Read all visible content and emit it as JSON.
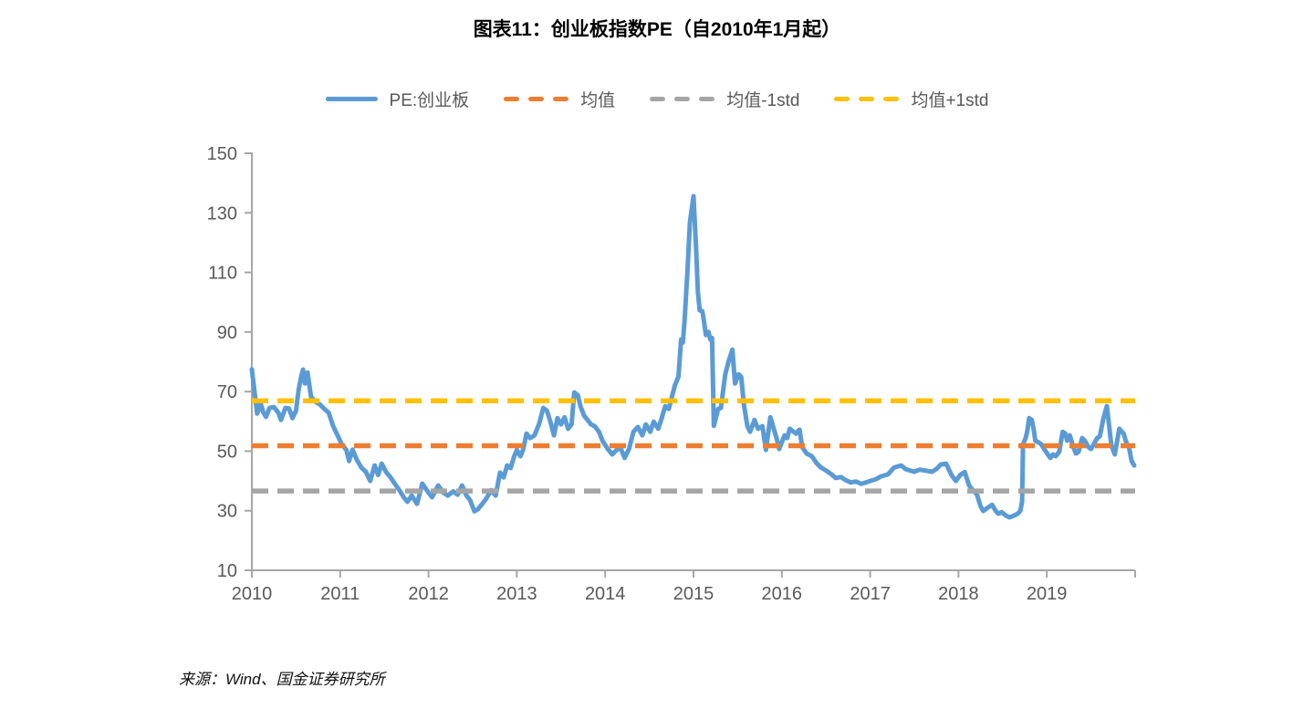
{
  "chart_data": {
    "type": "line",
    "title": "图表11：创业板指数PE（自2010年1月起）",
    "source_note": "来源：Wind、国金证券研究所",
    "legend_position": "top",
    "grid": false,
    "x_axis": {
      "range": [
        2010,
        2020
      ],
      "ticks": [
        2010,
        2011,
        2012,
        2013,
        2014,
        2015,
        2016,
        2017,
        2018,
        2019
      ],
      "end_tick": 2020
    },
    "y_axis": {
      "range": [
        10,
        150
      ],
      "ticks": [
        10,
        30,
        50,
        70,
        90,
        110,
        130,
        150
      ]
    },
    "series": [
      {
        "name": "PE:创业板",
        "color": "#5B9BD5",
        "style": "solid",
        "points": [
          [
            2010.0,
            77.5
          ],
          [
            2010.03,
            70.0
          ],
          [
            2010.06,
            62.6
          ],
          [
            2010.1,
            66.0
          ],
          [
            2010.13,
            63.0
          ],
          [
            2010.16,
            61.5
          ],
          [
            2010.2,
            64.5
          ],
          [
            2010.25,
            64.8
          ],
          [
            2010.3,
            62.9
          ],
          [
            2010.33,
            60.5
          ],
          [
            2010.38,
            64.5
          ],
          [
            2010.42,
            64.3
          ],
          [
            2010.46,
            61.1
          ],
          [
            2010.5,
            63.6
          ],
          [
            2010.53,
            70.7
          ],
          [
            2010.56,
            75.3
          ],
          [
            2010.58,
            77.4
          ],
          [
            2010.6,
            72.7
          ],
          [
            2010.63,
            76.4
          ],
          [
            2010.67,
            68.2
          ],
          [
            2010.72,
            66.6
          ],
          [
            2010.77,
            65.7
          ],
          [
            2010.82,
            64.2
          ],
          [
            2010.87,
            62.9
          ],
          [
            2010.92,
            58.4
          ],
          [
            2010.97,
            55.3
          ],
          [
            2011.02,
            52.2
          ],
          [
            2011.07,
            50.4
          ],
          [
            2011.1,
            46.7
          ],
          [
            2011.14,
            50.5
          ],
          [
            2011.19,
            47.0
          ],
          [
            2011.24,
            44.5
          ],
          [
            2011.29,
            43.1
          ],
          [
            2011.34,
            40.0
          ],
          [
            2011.39,
            45.2
          ],
          [
            2011.43,
            42.0
          ],
          [
            2011.47,
            45.8
          ],
          [
            2011.52,
            43.0
          ],
          [
            2011.57,
            41.2
          ],
          [
            2011.62,
            39.0
          ],
          [
            2011.67,
            36.9
          ],
          [
            2011.72,
            34.5
          ],
          [
            2011.76,
            33.0
          ],
          [
            2011.81,
            35.1
          ],
          [
            2011.87,
            32.3
          ],
          [
            2011.93,
            39.1
          ],
          [
            2011.98,
            36.9
          ],
          [
            2012.04,
            34.5
          ],
          [
            2012.11,
            38.5
          ],
          [
            2012.17,
            36.0
          ],
          [
            2012.22,
            35.1
          ],
          [
            2012.28,
            36.5
          ],
          [
            2012.33,
            35.4
          ],
          [
            2012.38,
            38.5
          ],
          [
            2012.43,
            35.1
          ],
          [
            2012.47,
            33.6
          ],
          [
            2012.52,
            29.8
          ],
          [
            2012.56,
            30.5
          ],
          [
            2012.6,
            32.0
          ],
          [
            2012.65,
            33.9
          ],
          [
            2012.71,
            36.9
          ],
          [
            2012.76,
            35.1
          ],
          [
            2012.81,
            42.8
          ],
          [
            2012.85,
            41.2
          ],
          [
            2012.89,
            45.2
          ],
          [
            2012.93,
            44.3
          ],
          [
            2012.97,
            48.3
          ],
          [
            2013.0,
            50.4
          ],
          [
            2013.04,
            48.3
          ],
          [
            2013.07,
            50.4
          ],
          [
            2013.11,
            55.9
          ],
          [
            2013.15,
            54.4
          ],
          [
            2013.2,
            55.3
          ],
          [
            2013.25,
            59.0
          ],
          [
            2013.3,
            64.5
          ],
          [
            2013.34,
            63.6
          ],
          [
            2013.38,
            59.9
          ],
          [
            2013.42,
            55.3
          ],
          [
            2013.46,
            61.1
          ],
          [
            2013.5,
            59.0
          ],
          [
            2013.54,
            61.4
          ],
          [
            2013.58,
            57.5
          ],
          [
            2013.62,
            59.0
          ],
          [
            2013.65,
            69.7
          ],
          [
            2013.69,
            68.8
          ],
          [
            2013.72,
            65.1
          ],
          [
            2013.76,
            62.0
          ],
          [
            2013.8,
            60.5
          ],
          [
            2013.84,
            59.0
          ],
          [
            2013.88,
            58.4
          ],
          [
            2013.93,
            56.5
          ],
          [
            2013.97,
            53.5
          ],
          [
            2014.03,
            50.7
          ],
          [
            2014.08,
            48.9
          ],
          [
            2014.13,
            50.4
          ],
          [
            2014.17,
            51.4
          ],
          [
            2014.22,
            47.7
          ],
          [
            2014.27,
            50.7
          ],
          [
            2014.32,
            56.5
          ],
          [
            2014.37,
            58.1
          ],
          [
            2014.42,
            55.3
          ],
          [
            2014.46,
            59.0
          ],
          [
            2014.51,
            56.5
          ],
          [
            2014.55,
            59.9
          ],
          [
            2014.6,
            57.5
          ],
          [
            2014.64,
            61.1
          ],
          [
            2014.68,
            65.1
          ],
          [
            2014.72,
            64.2
          ],
          [
            2014.76,
            68.8
          ],
          [
            2014.79,
            72.2
          ],
          [
            2014.83,
            75.0
          ],
          [
            2014.86,
            87.5
          ],
          [
            2014.88,
            86.5
          ],
          [
            2014.9,
            94.2
          ],
          [
            2014.93,
            109.5
          ],
          [
            2014.96,
            126.9
          ],
          [
            2015.0,
            135.6
          ],
          [
            2015.03,
            117.8
          ],
          [
            2015.05,
            103.4
          ],
          [
            2015.07,
            97.3
          ],
          [
            2015.1,
            97.0
          ],
          [
            2015.12,
            93.3
          ],
          [
            2015.14,
            89.0
          ],
          [
            2015.17,
            90.0
          ],
          [
            2015.19,
            87.5
          ],
          [
            2015.21,
            88.0
          ],
          [
            2015.23,
            58.5
          ],
          [
            2015.26,
            62.0
          ],
          [
            2015.28,
            64.2
          ],
          [
            2015.31,
            64.5
          ],
          [
            2015.36,
            75.8
          ],
          [
            2015.4,
            80.4
          ],
          [
            2015.44,
            84.1
          ],
          [
            2015.47,
            72.7
          ],
          [
            2015.51,
            75.8
          ],
          [
            2015.54,
            74.9
          ],
          [
            2015.57,
            65.7
          ],
          [
            2015.61,
            58.4
          ],
          [
            2015.64,
            56.5
          ],
          [
            2015.69,
            60.5
          ],
          [
            2015.73,
            57.5
          ],
          [
            2015.78,
            58.4
          ],
          [
            2015.82,
            50.4
          ],
          [
            2015.87,
            61.4
          ],
          [
            2015.9,
            58.4
          ],
          [
            2015.94,
            54.4
          ],
          [
            2015.97,
            50.7
          ],
          [
            2016.03,
            55.3
          ],
          [
            2016.06,
            54.4
          ],
          [
            2016.09,
            57.5
          ],
          [
            2016.16,
            55.9
          ],
          [
            2016.2,
            57.2
          ],
          [
            2016.23,
            51.4
          ],
          [
            2016.28,
            49.2
          ],
          [
            2016.34,
            48.3
          ],
          [
            2016.39,
            46.1
          ],
          [
            2016.44,
            44.6
          ],
          [
            2016.49,
            43.7
          ],
          [
            2016.55,
            42.5
          ],
          [
            2016.61,
            41.0
          ],
          [
            2016.67,
            41.3
          ],
          [
            2016.72,
            40.3
          ],
          [
            2016.78,
            39.5
          ],
          [
            2016.84,
            39.8
          ],
          [
            2016.9,
            39.0
          ],
          [
            2016.95,
            39.5
          ],
          [
            2017.0,
            40.0
          ],
          [
            2017.06,
            40.5
          ],
          [
            2017.12,
            41.5
          ],
          [
            2017.2,
            42.2
          ],
          [
            2017.27,
            44.5
          ],
          [
            2017.35,
            45.2
          ],
          [
            2017.4,
            44.0
          ],
          [
            2017.45,
            43.5
          ],
          [
            2017.5,
            43.1
          ],
          [
            2017.56,
            43.8
          ],
          [
            2017.62,
            43.5
          ],
          [
            2017.7,
            43.1
          ],
          [
            2017.75,
            44.0
          ],
          [
            2017.8,
            45.5
          ],
          [
            2017.86,
            45.8
          ],
          [
            2017.92,
            42.0
          ],
          [
            2017.97,
            40.0
          ],
          [
            2018.02,
            42.0
          ],
          [
            2018.07,
            43.0
          ],
          [
            2018.12,
            38.5
          ],
          [
            2018.16,
            37.0
          ],
          [
            2018.21,
            35.4
          ],
          [
            2018.25,
            31.5
          ],
          [
            2018.28,
            29.9
          ],
          [
            2018.33,
            31.0
          ],
          [
            2018.38,
            32.0
          ],
          [
            2018.42,
            30.0
          ],
          [
            2018.45,
            29.0
          ],
          [
            2018.49,
            29.5
          ],
          [
            2018.54,
            28.3
          ],
          [
            2018.58,
            27.8
          ],
          [
            2018.63,
            28.4
          ],
          [
            2018.67,
            29.0
          ],
          [
            2018.7,
            30.0
          ],
          [
            2018.72,
            33.0
          ],
          [
            2018.73,
            52.2
          ],
          [
            2018.76,
            54.4
          ],
          [
            2018.78,
            56.9
          ],
          [
            2018.8,
            61.1
          ],
          [
            2018.83,
            60.5
          ],
          [
            2018.85,
            57.5
          ],
          [
            2018.87,
            53.5
          ],
          [
            2018.91,
            52.9
          ],
          [
            2018.94,
            52.2
          ],
          [
            2018.97,
            50.7
          ],
          [
            2019.01,
            48.9
          ],
          [
            2019.04,
            47.7
          ],
          [
            2019.07,
            48.9
          ],
          [
            2019.1,
            48.3
          ],
          [
            2019.14,
            49.8
          ],
          [
            2019.18,
            56.5
          ],
          [
            2019.21,
            55.9
          ],
          [
            2019.23,
            53.5
          ],
          [
            2019.26,
            55.3
          ],
          [
            2019.3,
            51.4
          ],
          [
            2019.33,
            49.2
          ],
          [
            2019.36,
            49.8
          ],
          [
            2019.4,
            54.4
          ],
          [
            2019.43,
            53.5
          ],
          [
            2019.47,
            51.4
          ],
          [
            2019.5,
            50.7
          ],
          [
            2019.53,
            52.2
          ],
          [
            2019.57,
            54.4
          ],
          [
            2019.6,
            55.0
          ],
          [
            2019.64,
            61.0
          ],
          [
            2019.68,
            65.1
          ],
          [
            2019.73,
            52.0
          ],
          [
            2019.77,
            48.9
          ],
          [
            2019.82,
            57.5
          ],
          [
            2019.87,
            55.9
          ],
          [
            2019.9,
            52.9
          ],
          [
            2019.93,
            51.4
          ],
          [
            2019.96,
            46.7
          ],
          [
            2019.99,
            45.2
          ]
        ]
      },
      {
        "name": "均值",
        "color": "#ED7D31",
        "style": "dashed",
        "value": 51.8
      },
      {
        "name": "均值-1std",
        "color": "#A5A5A5",
        "style": "dashed",
        "value": 36.6
      },
      {
        "name": "均值+1std",
        "color": "#FFC000",
        "style": "dashed",
        "value": 66.9
      }
    ]
  },
  "colors": {
    "axis": "#A6A6A6",
    "tick_label": "#595959",
    "title_text": "#000000",
    "legend_text": "#595959",
    "background": "#FFFFFF"
  }
}
